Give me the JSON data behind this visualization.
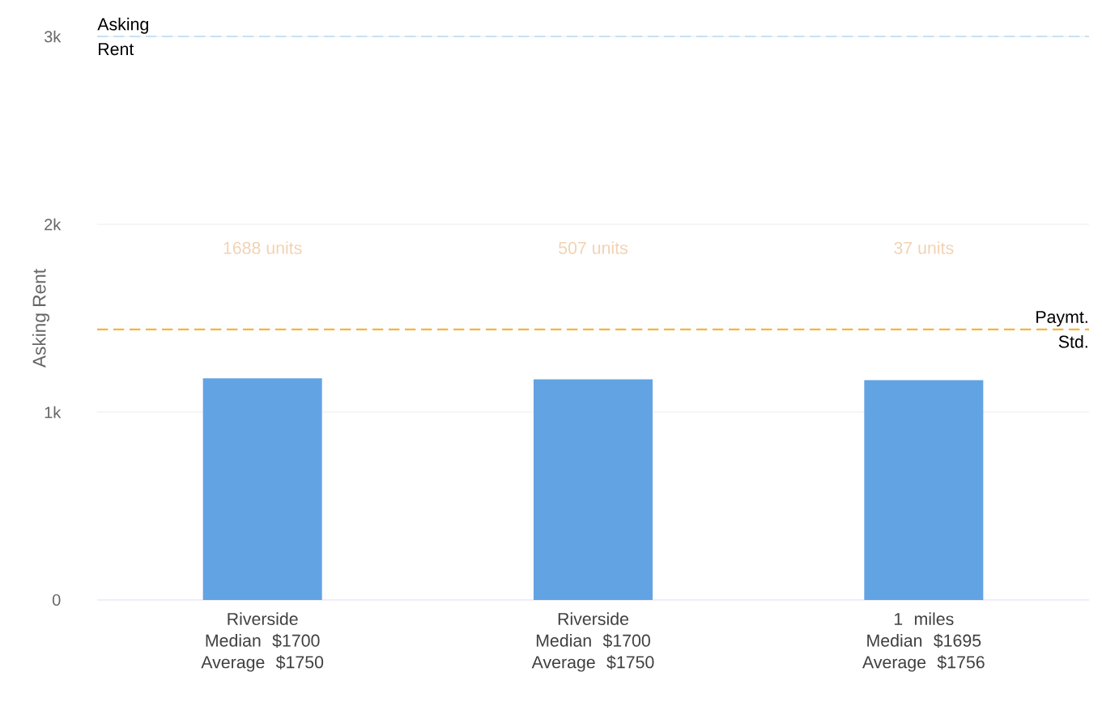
{
  "chart_data": {
    "type": "bar",
    "ylabel": "Asking Rent",
    "categories": [
      "Riverside Median $1700 Average $1750",
      "Riverside Median $1700 Average $1750",
      "1 miles Median $1695 Average $1756"
    ],
    "values": [
      1180,
      1175,
      1170
    ],
    "color": "#62a3e3",
    "ylim": [
      0,
      3000
    ],
    "yticks": [
      0,
      {
        "value": 1000,
        "label": "1k"
      },
      {
        "value": 2000,
        "label": "2k"
      },
      {
        "value": 3000,
        "label": "3k"
      }
    ],
    "grid": "y",
    "ref_lines": [
      {
        "axis": "y",
        "value": 3000,
        "label": "Asking Rent",
        "color": "#9ccbf0",
        "line_style": "dashed"
      },
      {
        "axis": "y",
        "value": 1440,
        "label": "Paymt. Std.",
        "color": "#f2b63c",
        "line_style": "dashed"
      }
    ],
    "annotations": [
      "1688 units",
      "507 units",
      "37 units"
    ]
  }
}
